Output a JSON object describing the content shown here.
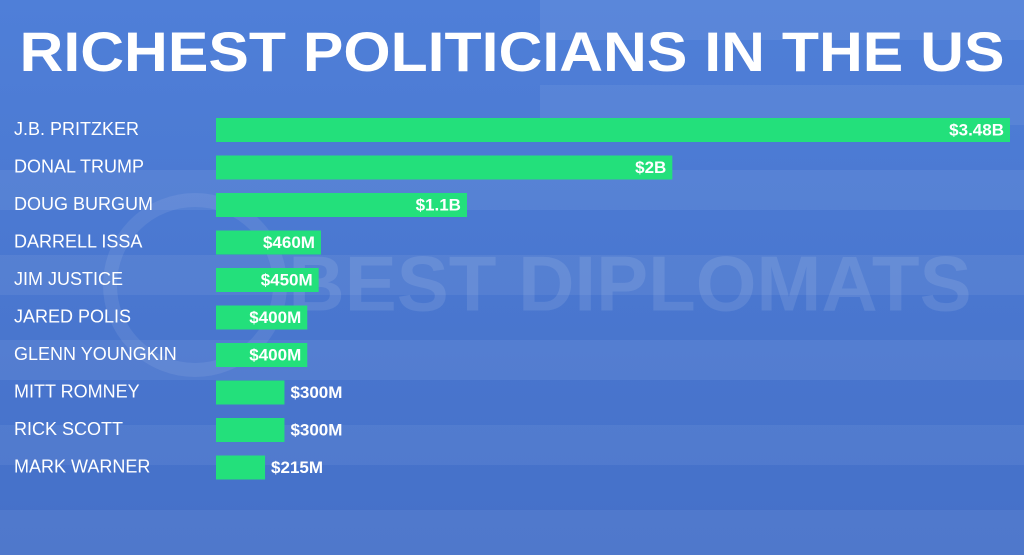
{
  "chart_data": {
    "type": "bar",
    "orientation": "horizontal",
    "title": "RICHEST POLITICIANS IN THE US",
    "watermark": "BEST DIPLOMATS",
    "categories": [
      "J.B. PRITZKER",
      "DONAL TRUMP",
      "DOUG BURGUM",
      "DARRELL ISSA",
      "JIM JUSTICE",
      "JARED POLIS",
      "GLENN YOUNGKIN",
      "MITT ROMNEY",
      "RICK SCOTT",
      "MARK WARNER"
    ],
    "values": [
      3480000000,
      2000000000,
      1100000000,
      460000000,
      450000000,
      400000000,
      400000000,
      300000000,
      300000000,
      215000000
    ],
    "value_labels": [
      "$3.48B",
      "$2B",
      "$1.1B",
      "$460M",
      "$450M",
      "$400M",
      "$400M",
      "$300M",
      "$300M",
      "$215M"
    ],
    "color": "#23e07b"
  }
}
